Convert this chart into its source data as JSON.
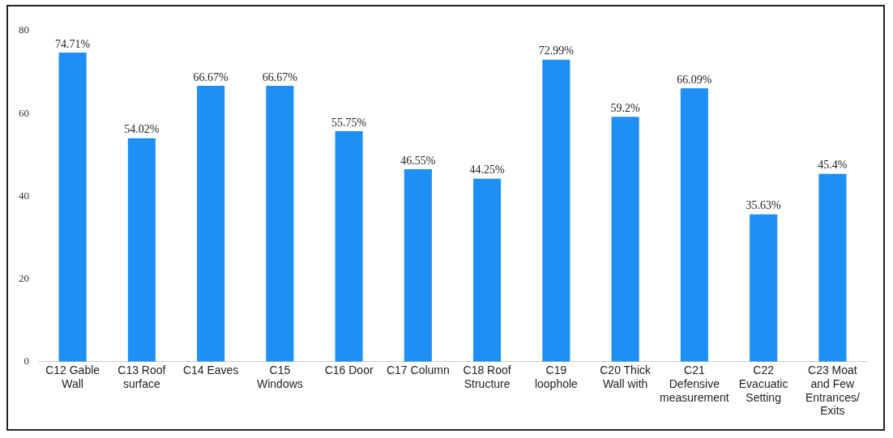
{
  "chart_data": {
    "type": "bar",
    "categories": [
      "C12 Gable Wall",
      "C13 Roof surface",
      "C14 Eaves",
      "C15 Windows",
      "C16 Door",
      "C17 Column",
      "C18 Roof Structure",
      "C19 loophole",
      "C20 Thick Wall with",
      "C21 Defensive measurement",
      "C22 Evacuatic Setting",
      "C23 Moat and Few Entrances/ Exits"
    ],
    "values": [
      74.71,
      54.02,
      66.67,
      66.67,
      55.75,
      46.55,
      44.25,
      72.99,
      59.2,
      66.09,
      35.63,
      45.4
    ],
    "value_labels": [
      "74.71%",
      "54.02%",
      "66.67%",
      "66.67%",
      "55.75%",
      "46.55%",
      "44.25%",
      "72.99%",
      "59.2%",
      "66.09%",
      "35.63%",
      "45.4%"
    ],
    "color": "#1e90f5",
    "ylim": [
      0,
      80
    ],
    "yticks": [
      0,
      20,
      40,
      60,
      80
    ],
    "grid": false,
    "legend": false
  }
}
